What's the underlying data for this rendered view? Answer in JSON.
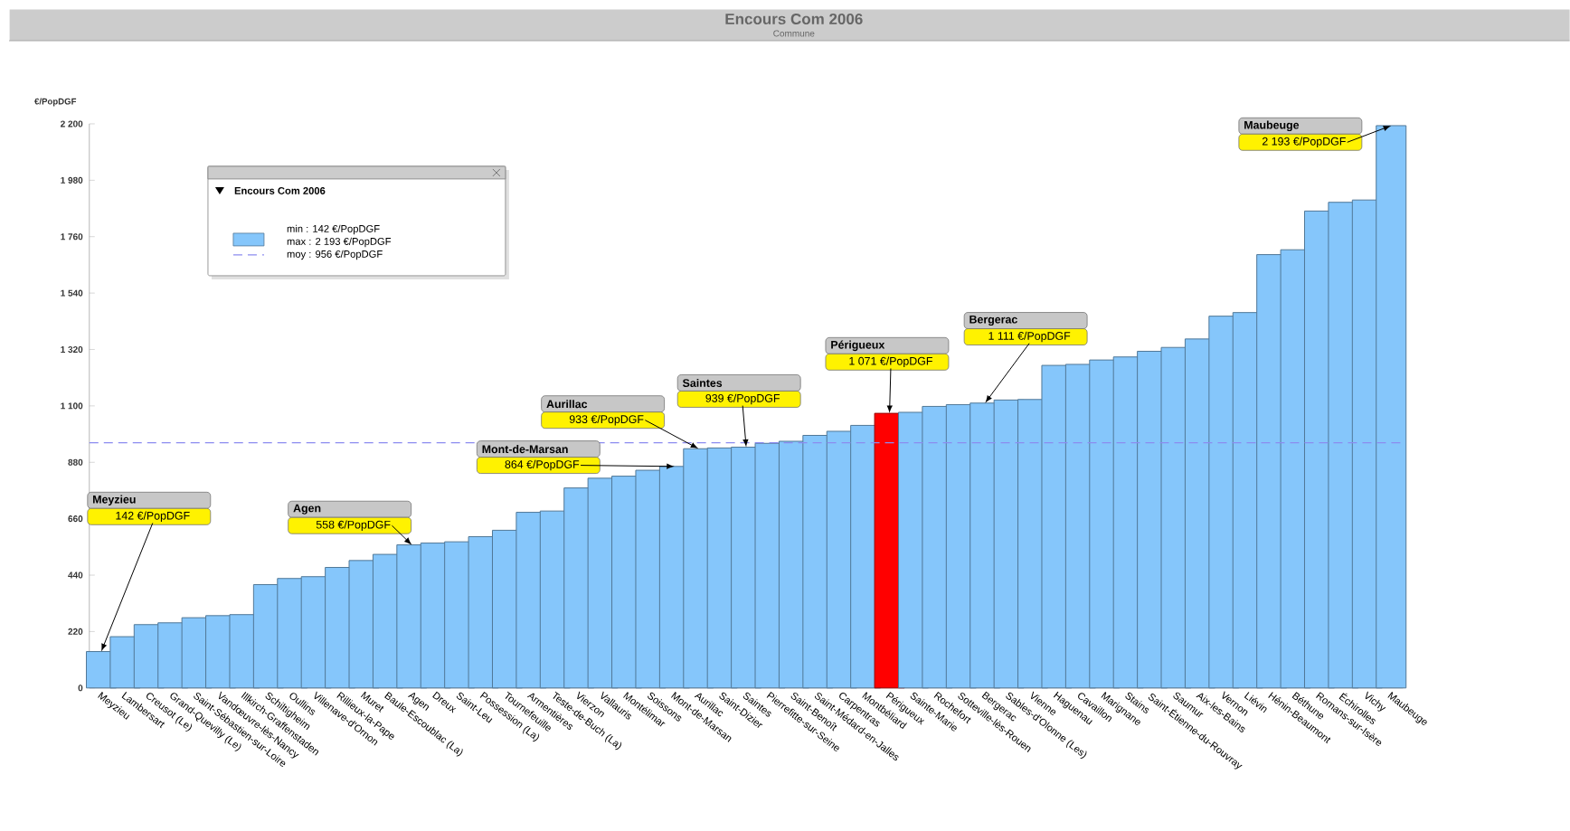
{
  "chart_data": {
    "type": "bar",
    "title": "Encours Com 2006",
    "subtitle": "Commune",
    "ylabel": "€/PopDGF",
    "legend_title": "Encours Com 2006",
    "legend": "top left",
    "categories": [
      "Meyzieu",
      "Lambersart",
      "Creusot (Le)",
      "Grand-Quevilly (Le)",
      "Saint-Sébastien-sur-Loire",
      "Vandœuvre-lès-Nancy",
      "Illkirch-Graffenstaden",
      "Schiltigheim",
      "Oullins",
      "Villenave-d'Ornon",
      "Rillieux-la-Pape",
      "Muret",
      "Baule-Escoublac (La)",
      "Agen",
      "Dreux",
      "Saint-Leu",
      "Possession (La)",
      "Tournefeuille",
      "Armentières",
      "Teste-de-Buch (La)",
      "Vierzon",
      "Vallauris",
      "Montélimar",
      "Soissons",
      "Mont-de-Marsan",
      "Aurillac",
      "Saint-Dizier",
      "Saintes",
      "Pierrefitte-sur-Seine",
      "Saint-Benoît",
      "Saint-Médard-en-Jalles",
      "Carpentras",
      "Montbéliard",
      "Périgueux",
      "Sainte-Marie",
      "Rochefort",
      "Sotteville-lès-Rouen",
      "Bergerac",
      "Sables-d'Olonne (Les)",
      "Vienne",
      "Haguenau",
      "Cavaillon",
      "Marignane",
      "Stains",
      "Saint-Étienne-du-Rouvray",
      "Saumur",
      "Aix-les-Bains",
      "Vernon",
      "Liévin",
      "Hénin-Beaumont",
      "Béthune",
      "Romans-sur-Isère",
      "Échirolles",
      "Vichy",
      "Maubeuge"
    ],
    "values": [
      142,
      200,
      247,
      254,
      274,
      282,
      286,
      403,
      427,
      434,
      470,
      497,
      521,
      558,
      565,
      570,
      590,
      615,
      685,
      690,
      780,
      818,
      826,
      849,
      864,
      933,
      936,
      939,
      954,
      962,
      985,
      1001,
      1024,
      1071,
      1075,
      1098,
      1105,
      1111,
      1123,
      1125,
      1258,
      1262,
      1279,
      1291,
      1313,
      1328,
      1361,
      1450,
      1464,
      1690,
      1709,
      1860,
      1894,
      1903,
      2193
    ],
    "colors": [
      "#85c6fb",
      "#85c6fb",
      "#85c6fb",
      "#85c6fb",
      "#85c6fb",
      "#85c6fb",
      "#85c6fb",
      "#85c6fb",
      "#85c6fb",
      "#85c6fb",
      "#85c6fb",
      "#85c6fb",
      "#85c6fb",
      "#85c6fb",
      "#85c6fb",
      "#85c6fb",
      "#85c6fb",
      "#85c6fb",
      "#85c6fb",
      "#85c6fb",
      "#85c6fb",
      "#85c6fb",
      "#85c6fb",
      "#85c6fb",
      "#85c6fb",
      "#85c6fb",
      "#85c6fb",
      "#85c6fb",
      "#85c6fb",
      "#85c6fb",
      "#85c6fb",
      "#85c6fb",
      "#85c6fb",
      "#ff0000",
      "#85c6fb",
      "#85c6fb",
      "#85c6fb",
      "#85c6fb",
      "#85c6fb",
      "#85c6fb",
      "#85c6fb",
      "#85c6fb",
      "#85c6fb",
      "#85c6fb",
      "#85c6fb",
      "#85c6fb",
      "#85c6fb",
      "#85c6fb",
      "#85c6fb",
      "#85c6fb",
      "#85c6fb",
      "#85c6fb",
      "#85c6fb",
      "#85c6fb",
      "#85c6fb"
    ],
    "ylim": [
      0,
      2200
    ],
    "yticks": [
      0,
      220,
      440,
      660,
      880,
      {
        "value": 1100,
        "label": "1 100"
      },
      {
        "value": 1320,
        "label": "1 320"
      },
      {
        "value": 1540,
        "label": "1 540"
      },
      {
        "value": 1760,
        "label": "1 760"
      },
      {
        "value": 1980,
        "label": "1 980"
      },
      {
        "value": 2200,
        "label": "2 200"
      }
    ],
    "ref_lines": [
      {
        "axis": "y",
        "value": 956,
        "label": "moy : 956 €/PopDGF",
        "color": "#8c8cf0",
        "line_style": "dashed"
      }
    ],
    "annotations": [
      "Meyzieu",
      {
        "text": "142 €/PopDGF",
        "x": "Meyzieu",
        "y": 142
      },
      "Agen",
      {
        "text": "558 €/PopDGF",
        "x": "Agen",
        "y": 558
      },
      "Mont-de-Marsan",
      {
        "text": "864 €/PopDGF",
        "x": "Mont-de-Marsan",
        "y": 864
      },
      "Aurillac",
      {
        "text": "933 €/PopDGF",
        "x": "Aurillac",
        "y": 933
      },
      "Saintes",
      {
        "text": "939 €/PopDGF",
        "x": "Saintes",
        "y": 939
      },
      "Périgueux",
      {
        "text": "1 071 €/PopDGF",
        "x": "Périgueux",
        "y": 1071
      },
      "Bergerac",
      {
        "text": "1 111 €/PopDGF",
        "x": "Bergerac",
        "y": 1111
      },
      "Maubeuge",
      {
        "text": "2 193 €/PopDGF",
        "x": "Maubeuge",
        "y": 2193
      },
      "min : 142 €/PopDGF",
      "max : 2 193 €/PopDGF"
    ]
  }
}
